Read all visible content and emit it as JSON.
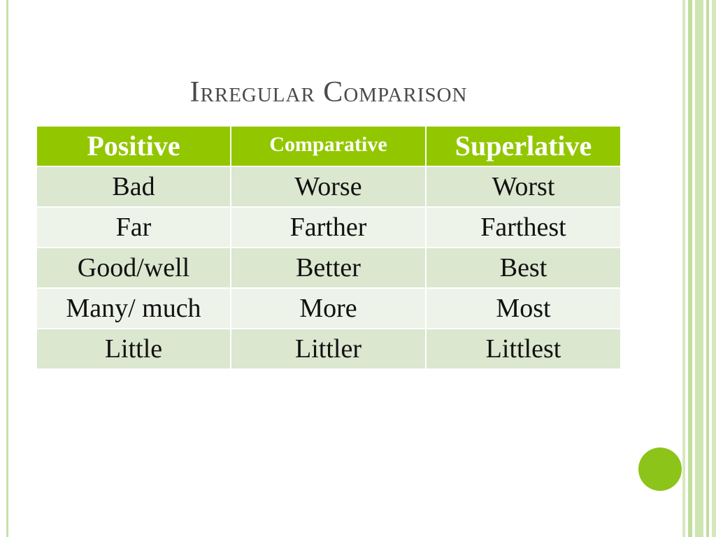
{
  "slide": {
    "title": "Irregular Comparison",
    "accent_color": "#92c700",
    "dot_color": "#8cc41a"
  },
  "table": {
    "headers": [
      "Positive",
      "Comparative",
      "Superlative"
    ],
    "rows": [
      [
        "Bad",
        "Worse",
        "Worst"
      ],
      [
        "Far",
        "Farther",
        "Farthest"
      ],
      [
        "Good/well",
        "Better",
        "Best"
      ],
      [
        "Many/ much",
        "More",
        "Most"
      ],
      [
        "Little",
        "Littler",
        "Littlest"
      ]
    ]
  }
}
